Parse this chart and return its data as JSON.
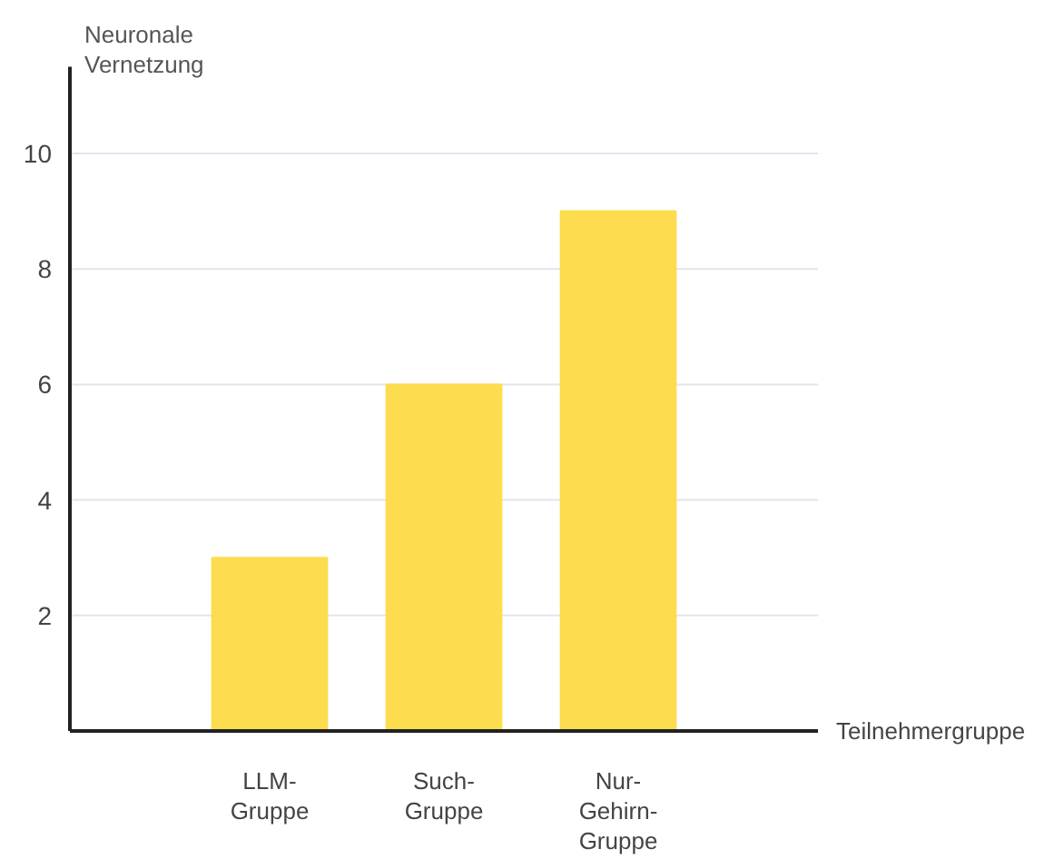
{
  "chart_data": {
    "type": "bar",
    "categories": [
      "LLM-Gruppe",
      "Such-Gruppe",
      "Nur-Gehirn-Gruppe"
    ],
    "values": [
      3,
      6,
      9
    ],
    "color": "#fddc4f",
    "ylabel": "Neuronale Vernetzung",
    "xlabel": "Teilnehmergruppe",
    "ylim": [
      0,
      11.5
    ],
    "yticks": [
      2,
      4,
      6,
      8,
      10
    ],
    "grid": "y"
  }
}
